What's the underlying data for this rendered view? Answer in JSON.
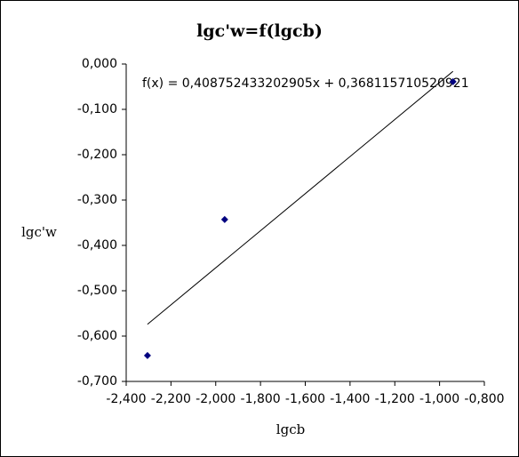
{
  "chart_data": {
    "type": "scatter",
    "title": "lgc'w=f(lgcb)",
    "x_label": "lgcb",
    "y_label": "lgc'w",
    "series": [
      {
        "color": "#000080",
        "x": [
          -2.305,
          -1.96,
          -0.94
        ],
        "values": [
          -0.643,
          -0.343,
          -0.039
        ]
      }
    ],
    "trendline": {
      "slope": 0.408752433202905,
      "intercept": 0.368115710520921,
      "color": "#000000",
      "label": "f(x) = 0,408752433202905x + 0,368115710520921"
    },
    "xlim": [
      -2.4,
      -0.8
    ],
    "xticks": [
      {
        "value": -2.4,
        "label": "-2,400"
      },
      {
        "value": -2.2,
        "label": "-2,200"
      },
      {
        "value": -2.0,
        "label": "-2,000"
      },
      {
        "value": -1.8,
        "label": "-1,800"
      },
      {
        "value": -1.6,
        "label": "-1,600"
      },
      {
        "value": -1.4,
        "label": "-1,400"
      },
      {
        "value": -1.2,
        "label": "-1,200"
      },
      {
        "value": -1.0,
        "label": "-1,000"
      },
      {
        "value": -0.8,
        "label": "-0,800"
      }
    ],
    "ylim": [
      -0.7,
      0
    ],
    "yticks": [
      {
        "value": 0,
        "label": "0,000"
      },
      {
        "value": -0.1,
        "label": "-0,100"
      },
      {
        "value": -0.2,
        "label": "-0,200"
      },
      {
        "value": -0.3,
        "label": "-0,300"
      },
      {
        "value": -0.4,
        "label": "-0,400"
      },
      {
        "value": -0.5,
        "label": "-0,500"
      },
      {
        "value": -0.6,
        "label": "-0,600"
      },
      {
        "value": -0.7,
        "label": "-0,700"
      }
    ],
    "grid": false
  }
}
